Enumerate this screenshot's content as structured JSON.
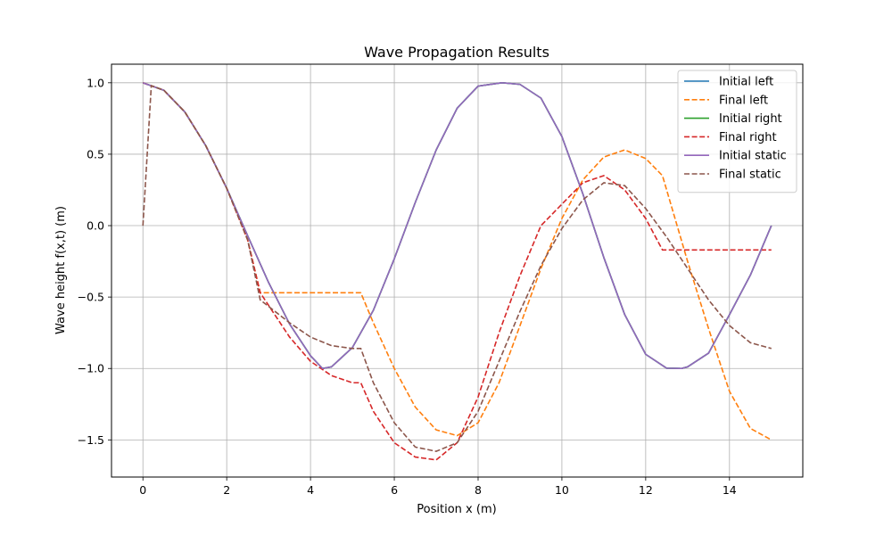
{
  "chart_data": {
    "type": "line",
    "title": "Wave Propagation Results",
    "xlabel": "Position x (m)",
    "ylabel": "Wave height f(x,t) (m)",
    "xlim": [
      -0.75,
      15.75
    ],
    "ylim": [
      -1.76,
      1.13
    ],
    "xticks": [
      0,
      2,
      4,
      6,
      8,
      10,
      12,
      14
    ],
    "yticks": [
      -1.5,
      -1.0,
      -0.5,
      0.0,
      0.5,
      1.0
    ],
    "ytick_labels": [
      "−1.5",
      "−1.0",
      "−0.5",
      "0.0",
      "0.5",
      "1.0"
    ],
    "grid": true,
    "legend_position": "top-right",
    "series": [
      {
        "name": "Initial left",
        "color": "#1f77b4",
        "style": "solid",
        "x": [
          0,
          0.5,
          1,
          1.5,
          2,
          2.5,
          3,
          3.5,
          4,
          4.2857,
          4.5,
          5,
          5.5,
          6,
          6.5,
          7,
          7.5,
          8,
          8.5714,
          9,
          9.5,
          10,
          10.5,
          11,
          11.5,
          12,
          12.5,
          12.8571,
          13,
          13.5,
          14,
          14.5,
          15
        ],
        "y": [
          1,
          0.9477,
          0.7959,
          0.5596,
          0.2611,
          -0.0713,
          -0.3987,
          -0.6883,
          -0.9109,
          -1,
          -0.9888,
          -0.8536,
          -0.5927,
          -0.2317,
          0.1618,
          0.5299,
          0.8219,
          0.9767,
          1,
          0.9888,
          0.8928,
          0.6235,
          0.2225,
          -0.2225,
          -0.6235,
          -0.901,
          -0.9979,
          -1,
          -0.9888,
          -0.8928,
          -0.6235,
          -0.3455,
          0
        ]
      },
      {
        "name": "Final left",
        "color": "#ff7f0e",
        "style": "dashed",
        "x": [
          0,
          0.5,
          1,
          1.5,
          2,
          2.5,
          2.8,
          5.2,
          5.5,
          6,
          6.5,
          7,
          7.5,
          8,
          8.5,
          9,
          9.5,
          10,
          10.5,
          11,
          11.5,
          12,
          12.4,
          13,
          13.5,
          14,
          14.5,
          15
        ],
        "y": [
          1,
          0.9477,
          0.7959,
          0.5596,
          0.2611,
          -0.1,
          -0.47,
          -0.47,
          -0.68,
          -1.0,
          -1.27,
          -1.43,
          -1.47,
          -1.38,
          -1.1,
          -0.7,
          -0.3,
          0.05,
          0.32,
          0.48,
          0.53,
          0.47,
          0.35,
          -0.25,
          -0.72,
          -1.16,
          -1.42,
          -1.5
        ]
      },
      {
        "name": "Initial right",
        "color": "#2ca02c",
        "style": "solid",
        "x": [
          0,
          0.5,
          1,
          1.5,
          2,
          2.5,
          3,
          3.5,
          4,
          4.2857,
          4.5,
          5,
          5.5,
          6,
          6.5,
          7,
          7.5,
          8,
          8.5714,
          9,
          9.5,
          10,
          10.5,
          11,
          11.5,
          12,
          12.5,
          12.8571,
          13,
          13.5,
          14,
          14.5,
          15
        ],
        "y": [
          1,
          0.9477,
          0.7959,
          0.5596,
          0.2611,
          -0.0713,
          -0.3987,
          -0.6883,
          -0.9109,
          -1,
          -0.9888,
          -0.8536,
          -0.5927,
          -0.2317,
          0.1618,
          0.5299,
          0.8219,
          0.9767,
          1,
          0.9888,
          0.8928,
          0.6235,
          0.2225,
          -0.2225,
          -0.6235,
          -0.901,
          -0.9979,
          -1,
          -0.9888,
          -0.8928,
          -0.6235,
          -0.3455,
          0
        ]
      },
      {
        "name": "Final right",
        "color": "#d62728",
        "style": "dashed",
        "x": [
          0,
          0.5,
          1,
          1.5,
          2,
          2.5,
          2.8,
          3.5,
          4,
          4.5,
          5,
          5.2,
          5.5,
          6,
          6.5,
          7,
          7.5,
          8,
          8.5,
          9,
          9.5,
          10,
          10.5,
          11,
          11.5,
          12,
          12.4,
          13,
          14,
          15
        ],
        "y": [
          1,
          0.9477,
          0.7959,
          0.5596,
          0.2611,
          -0.1,
          -0.47,
          -0.78,
          -0.95,
          -1.05,
          -1.1,
          -1.1,
          -1.3,
          -1.52,
          -1.62,
          -1.64,
          -1.52,
          -1.2,
          -0.75,
          -0.35,
          0.0,
          0.15,
          0.3,
          0.35,
          0.25,
          0.05,
          -0.17,
          -0.17,
          -0.17,
          -0.17
        ]
      },
      {
        "name": "Initial static",
        "color": "#9467bd",
        "style": "solid",
        "x": [
          0,
          0.5,
          1,
          1.5,
          2,
          2.5,
          3,
          3.5,
          4,
          4.2857,
          4.5,
          5,
          5.5,
          6,
          6.5,
          7,
          7.5,
          8,
          8.5714,
          9,
          9.5,
          10,
          10.5,
          11,
          11.5,
          12,
          12.5,
          12.8571,
          13,
          13.5,
          14,
          14.5,
          15
        ],
        "y": [
          1,
          0.9477,
          0.7959,
          0.5596,
          0.2611,
          -0.0713,
          -0.3987,
          -0.6883,
          -0.9109,
          -1,
          -0.9888,
          -0.8536,
          -0.5927,
          -0.2317,
          0.1618,
          0.5299,
          0.8219,
          0.9767,
          1,
          0.9888,
          0.8928,
          0.6235,
          0.2225,
          -0.2225,
          -0.6235,
          -0.901,
          -0.9979,
          -1,
          -0.9888,
          -0.8928,
          -0.6235,
          -0.3455,
          0
        ]
      },
      {
        "name": "Final static",
        "color": "#8c564b",
        "style": "dashed",
        "x": [
          0,
          0.2,
          0.5,
          1,
          1.5,
          2,
          2.5,
          2.8,
          3.5,
          4,
          4.5,
          5,
          5.2,
          5.5,
          6,
          6.5,
          7,
          7.5,
          8,
          8.5,
          9,
          9.5,
          10,
          10.5,
          11,
          11.5,
          12,
          12.5,
          13,
          13.5,
          14,
          14.5,
          15
        ],
        "y": [
          0,
          0.98,
          0.9477,
          0.7959,
          0.5596,
          0.2611,
          -0.1,
          -0.52,
          -0.68,
          -0.78,
          -0.84,
          -0.86,
          -0.86,
          -1.1,
          -1.38,
          -1.55,
          -1.58,
          -1.52,
          -1.3,
          -0.95,
          -0.6,
          -0.28,
          -0.02,
          0.18,
          0.3,
          0.28,
          0.12,
          -0.08,
          -0.3,
          -0.52,
          -0.7,
          -0.82,
          -0.86
        ]
      }
    ]
  }
}
